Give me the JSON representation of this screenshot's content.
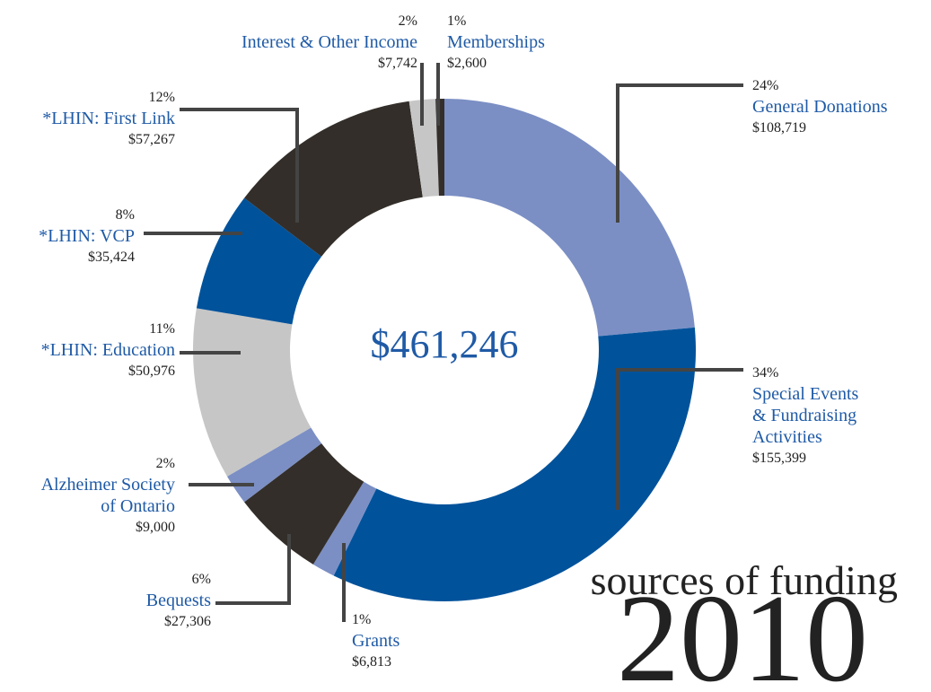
{
  "chart_data": {
    "type": "donut",
    "title": "sources of funding",
    "year": "2010",
    "total_label": "$461,246",
    "categories": [
      "General Donations",
      "Special Events\n& Fundraising\nActivities",
      "Grants",
      "Bequests",
      "Alzheimer Society\nof Ontario",
      "*LHIN: Education",
      "*LHIN: VCP",
      "*LHIN: First Link",
      "Interest & Other Income",
      "Memberships"
    ],
    "values": [
      108719,
      155399,
      6813,
      27306,
      9000,
      50976,
      35424,
      57267,
      7742,
      2600
    ],
    "value_labels": [
      "$108,719",
      "$155,399",
      "$6,813",
      "$27,306",
      "$9,000",
      "$50,976",
      "$35,424",
      "$57,267",
      "$7,742",
      "$2,600"
    ],
    "percent_labels": [
      "24%",
      "34%",
      "1%",
      "6%",
      "2%",
      "11%",
      "8%",
      "12%",
      "2%",
      "1%"
    ],
    "colors": [
      "#7b8fc4",
      "#00529b",
      "#7b8fc4",
      "#332e29",
      "#7b8fc4",
      "#c6c6c6",
      "#00529b",
      "#332e29",
      "#c6c6c6",
      "#332e29"
    ]
  }
}
